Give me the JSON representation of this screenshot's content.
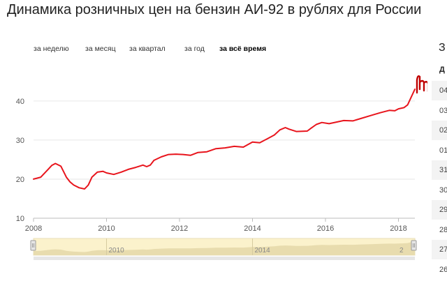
{
  "page": {
    "title": "Динамика розничных цен на бензин АИ-92 в рублях для России"
  },
  "period_tabs": [
    {
      "label": "за неделю",
      "active": false
    },
    {
      "label": "за месяц",
      "active": false
    },
    {
      "label": "за квартал",
      "active": false
    },
    {
      "label": "за год",
      "active": false
    },
    {
      "label": "за всё время",
      "active": true
    }
  ],
  "side_panel": {
    "title": "З",
    "header": "Д",
    "rows": [
      "04",
      "03",
      "02",
      "01",
      "31",
      "30",
      "29",
      "28",
      "27",
      "26"
    ]
  },
  "chart_data": {
    "type": "line",
    "title": "Динамика розничных цен на бензин АИ-92 в рублях для России",
    "xlabel": "",
    "ylabel": "",
    "xlim": [
      2008,
      2018.45
    ],
    "ylim": [
      10,
      48
    ],
    "x_ticks": [
      2008,
      2010,
      2012,
      2014,
      2016,
      2018
    ],
    "y_ticks": [
      10,
      20,
      30,
      40
    ],
    "grid": true,
    "line_color": "#e8141c",
    "series": [
      {
        "x": [
          2008.0,
          2008.2,
          2008.4,
          2008.5,
          2008.6,
          2008.75,
          2008.9,
          2009.0,
          2009.1,
          2009.25,
          2009.4,
          2009.5,
          2009.6,
          2009.75,
          2009.9,
          2010.0,
          2010.2,
          2010.4,
          2010.6,
          2010.8,
          2011.0,
          2011.1,
          2011.2,
          2011.3,
          2011.5,
          2011.7,
          2011.9,
          2012.1,
          2012.3,
          2012.5,
          2012.75,
          2013.0,
          2013.25,
          2013.5,
          2013.75,
          2014.0,
          2014.2,
          2014.4,
          2014.6,
          2014.75,
          2014.9,
          2015.0,
          2015.2,
          2015.5,
          2015.6,
          2015.75,
          2015.9,
          2016.1,
          2016.3,
          2016.5,
          2016.75,
          2017.0,
          2017.25,
          2017.5,
          2017.75,
          2017.9,
          2018.0,
          2018.15,
          2018.25,
          2018.35,
          2018.45
        ],
        "y": [
          20.0,
          20.5,
          22.5,
          23.5,
          24.0,
          23.3,
          20.5,
          19.3,
          18.5,
          17.8,
          17.5,
          18.5,
          20.5,
          21.8,
          22.0,
          21.6,
          21.2,
          21.8,
          22.5,
          23.0,
          23.6,
          23.2,
          23.6,
          24.8,
          25.7,
          26.3,
          26.4,
          26.3,
          26.1,
          26.8,
          27.0,
          27.8,
          28.0,
          28.4,
          28.2,
          29.5,
          29.3,
          30.3,
          31.3,
          32.6,
          33.2,
          32.8,
          32.2,
          32.3,
          33.0,
          34.0,
          34.5,
          34.2,
          34.6,
          35.0,
          34.9,
          35.6,
          36.3,
          37.0,
          37.6,
          37.5,
          38.0,
          38.3,
          39.0,
          41.0,
          43.0
        ]
      }
    ],
    "navigator": {
      "x_ticks": [
        2010,
        2014
      ],
      "trailing_label": "2"
    }
  }
}
